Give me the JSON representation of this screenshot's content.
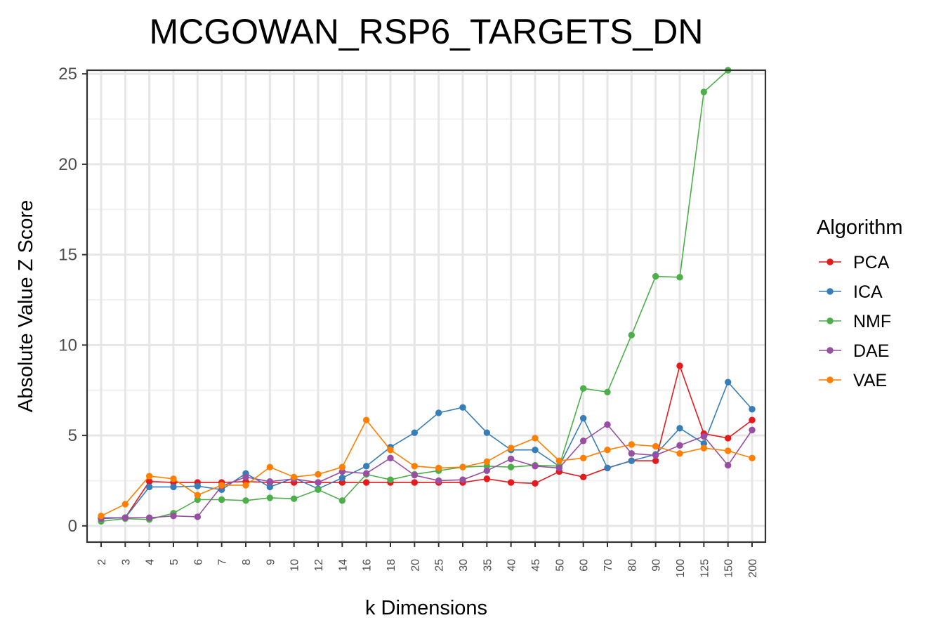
{
  "chart_data": {
    "type": "line",
    "title": "MCGOWAN_RSP6_TARGETS_DN",
    "xlabel": "k Dimensions",
    "ylabel": "Absolute Value Z Score",
    "ylim": [
      -0.9,
      25.2
    ],
    "yticks": [
      0,
      5,
      10,
      15,
      20,
      25
    ],
    "grid": true,
    "legend_title": "Algorithm",
    "legend_position": "right",
    "categories": [
      "2",
      "3",
      "4",
      "5",
      "6",
      "7",
      "8",
      "9",
      "10",
      "12",
      "14",
      "16",
      "18",
      "20",
      "25",
      "30",
      "35",
      "40",
      "45",
      "50",
      "60",
      "70",
      "80",
      "90",
      "100",
      "125",
      "150",
      "200"
    ],
    "series": [
      {
        "name": "PCA",
        "color": "#e41a1c",
        "values": [
          0.45,
          0.45,
          2.45,
          2.4,
          2.4,
          2.4,
          2.45,
          2.4,
          2.4,
          2.4,
          2.4,
          2.4,
          2.4,
          2.4,
          2.4,
          2.4,
          2.6,
          2.4,
          2.35,
          3.0,
          2.7,
          3.2,
          3.6,
          3.6,
          8.85,
          5.1,
          4.85,
          5.85
        ]
      },
      {
        "name": "ICA",
        "color": "#377eb8",
        "values": [
          0.45,
          0.45,
          2.15,
          2.15,
          2.2,
          2.0,
          2.9,
          2.15,
          2.65,
          2.05,
          2.65,
          3.3,
          4.35,
          5.15,
          6.25,
          6.55,
          5.15,
          4.2,
          4.2,
          3.3,
          5.95,
          3.2,
          3.6,
          3.95,
          5.4,
          4.55,
          7.95,
          6.45
        ]
      },
      {
        "name": "NMF",
        "color": "#4daf4a",
        "values": [
          0.25,
          0.4,
          0.35,
          0.7,
          1.45,
          1.45,
          1.4,
          1.55,
          1.5,
          2.0,
          1.4,
          2.85,
          2.55,
          2.85,
          3.05,
          3.25,
          3.3,
          3.25,
          3.35,
          3.3,
          7.6,
          7.4,
          10.55,
          13.8,
          13.75,
          24.0,
          25.2,
          null
        ]
      },
      {
        "name": "DAE",
        "color": "#984ea3",
        "values": [
          0.4,
          0.45,
          0.45,
          0.55,
          0.5,
          2.2,
          2.7,
          2.45,
          2.6,
          2.4,
          3.0,
          2.9,
          3.75,
          2.8,
          2.5,
          2.55,
          3.05,
          3.7,
          3.3,
          3.2,
          4.7,
          5.6,
          4.0,
          3.9,
          4.45,
          4.95,
          3.35,
          5.3
        ]
      },
      {
        "name": "VAE",
        "color": "#ff7f00",
        "values": [
          0.55,
          1.2,
          2.75,
          2.6,
          1.7,
          2.25,
          2.25,
          3.25,
          2.7,
          2.85,
          3.25,
          5.85,
          4.2,
          3.3,
          3.2,
          3.25,
          3.55,
          4.3,
          4.85,
          3.6,
          3.75,
          4.2,
          4.5,
          4.4,
          4.0,
          4.3,
          4.15,
          3.75
        ]
      }
    ]
  }
}
